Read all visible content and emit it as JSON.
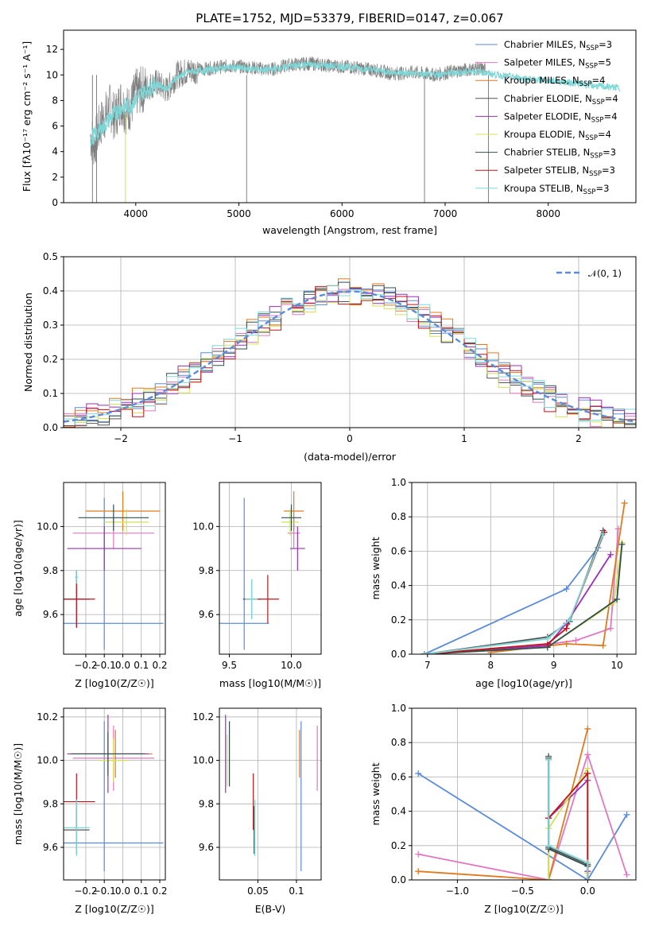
{
  "chart_data": [
    {
      "id": "spectrum",
      "type": "line",
      "title": "PLATE=1752, MJD=53379, FIBERID=0147, z=0.067",
      "xlabel": "wavelength [Angstrom, rest frame]",
      "ylabel": "Flux [fλ10⁻¹⁷ erg cm⁻² s⁻¹ A⁻¹]",
      "xlim": [
        3300,
        8850
      ],
      "ylim": [
        0,
        13.5
      ],
      "xticks": [
        4000,
        5000,
        6000,
        7000,
        8000
      ],
      "yticks": [
        0,
        2,
        4,
        6,
        8,
        10,
        12
      ],
      "legend_position": "right",
      "legend": [
        {
          "label": "Chabrier MILES, N_SSP=3",
          "color": "#5B8BD9"
        },
        {
          "label": "Salpeter MILES, N_SSP=5",
          "color": "#E377C2"
        },
        {
          "label": "Kroupa MILES, N_SSP=4",
          "color": "#E07A1F"
        },
        {
          "label": "Chabrier ELODIE, N_SSP=4",
          "color": "#555555"
        },
        {
          "label": "Salpeter ELODIE, N_SSP=4",
          "color": "#9B2FB8"
        },
        {
          "label": "Kroupa ELODIE, N_SSP=4",
          "color": "#D4E157"
        },
        {
          "label": "Chabrier STELIB, N_SSP=3",
          "color": "#2F4F4F"
        },
        {
          "label": "Salpeter STELIB, N_SSP=3",
          "color": "#C0141C"
        },
        {
          "label": "Kroupa STELIB, N_SSP=3",
          "color": "#7FD8D8"
        }
      ],
      "series": [
        {
          "name": "data",
          "color": "#808080",
          "x": [
            3560,
            3600,
            3650,
            3700,
            3750,
            3800,
            3850,
            3900,
            3950,
            4000,
            4100,
            4200,
            4300,
            4400,
            4500,
            4700,
            4900,
            5100,
            5300,
            5500,
            5700,
            5900,
            6100,
            6300,
            6500,
            6700,
            6900,
            7100,
            7300,
            7400
          ],
          "y": [
            5.2,
            4.5,
            6.0,
            6.8,
            7.5,
            6.6,
            8.0,
            7.2,
            7.5,
            8.6,
            9.0,
            9.4,
            8.8,
            10.0,
            10.3,
            10.5,
            10.7,
            10.6,
            10.4,
            10.8,
            10.9,
            10.7,
            10.6,
            10.4,
            10.1,
            10.2,
            10.0,
            10.3,
            10.5,
            10.4
          ]
        },
        {
          "name": "model",
          "color": "#7FD8D8",
          "x": [
            3560,
            3650,
            3750,
            3850,
            3950,
            4000,
            4100,
            4200,
            4300,
            4400,
            4500,
            4700,
            4900,
            5100,
            5300,
            5500,
            5700,
            5900,
            6100,
            6300,
            6500,
            6700,
            6900,
            7100,
            7300,
            7500,
            7700,
            7900,
            8100,
            8300,
            8500,
            8700
          ],
          "y": [
            5.0,
            5.6,
            6.6,
            7.4,
            7.6,
            8.2,
            8.8,
            9.3,
            8.9,
            9.8,
            10.2,
            10.4,
            10.6,
            10.5,
            10.4,
            10.7,
            10.8,
            10.7,
            10.6,
            10.4,
            10.2,
            10.1,
            10.0,
            10.2,
            10.3,
            10.0,
            9.8,
            9.6,
            9.5,
            9.3,
            9.1,
            9.0
          ]
        }
      ]
    },
    {
      "id": "residuals",
      "type": "line",
      "xlabel": "(data-model)/error",
      "ylabel": "Normed distribution",
      "xlim": [
        -2.5,
        2.5
      ],
      "ylim": [
        0,
        0.5
      ],
      "xticks": [
        -2,
        -1,
        0,
        1,
        2
      ],
      "yticks": [
        0.0,
        0.1,
        0.2,
        0.3,
        0.4,
        0.5
      ],
      "legend_position": "top-right",
      "legend": [
        {
          "label": "𝒩(0, 1)",
          "color": "#5B8BD9",
          "style": "dashed"
        }
      ],
      "series": [
        {
          "name": "N(0,1)",
          "type": "gaussian",
          "mu": 0,
          "sigma": 1,
          "color": "#5B8BD9"
        }
      ],
      "histograms": {
        "bin_edges_start": -2.5,
        "bin_width": 0.1,
        "colors": [
          "#5B8BD9",
          "#E377C2",
          "#E07A1F",
          "#555555",
          "#9B2FB8",
          "#D4E157",
          "#2F4F4F",
          "#C0141C",
          "#7FD8D8"
        ],
        "jitter": [
          0.01,
          -0.012,
          0.018,
          -0.008,
          0.014,
          -0.016,
          0.009,
          -0.011,
          0.006
        ]
      }
    },
    {
      "id": "age-vs-Z",
      "type": "scatter",
      "xlabel": "Z [log10(Z/Z☉)]",
      "ylabel": "age [log10(age/yr)]",
      "xlim": [
        -0.32,
        0.23
      ],
      "ylim": [
        9.42,
        10.2
      ],
      "xticks": [
        -0.2,
        -0.1,
        0.0,
        0.1,
        0.2
      ],
      "yticks": [
        9.6,
        9.8,
        10.0
      ],
      "points": [
        {
          "x": -0.1,
          "y": 9.56,
          "xerr": 0.32,
          "yerr": [
            0.12,
            0.57
          ],
          "color": "#5B8BD9"
        },
        {
          "x": -0.05,
          "y": 9.97,
          "xerr": 0.22,
          "yerr": 0.07,
          "color": "#E377C2"
        },
        {
          "x": 0.0,
          "y": 10.07,
          "xerr": 0.2,
          "yerr": 0.09,
          "color": "#E07A1F"
        },
        {
          "x": -0.25,
          "y": 9.67,
          "xerr": 0.07,
          "yerr": 0.13,
          "color": "#555555"
        },
        {
          "x": -0.1,
          "y": 9.9,
          "xerr": 0.2,
          "yerr": 0.1,
          "color": "#9B2FB8"
        },
        {
          "x": 0.02,
          "y": 10.02,
          "xerr": 0.12,
          "yerr": 0.06,
          "color": "#D4E157"
        },
        {
          "x": -0.05,
          "y": 10.04,
          "xerr": 0.19,
          "yerr": 0.06,
          "color": "#2F4F4F"
        },
        {
          "x": -0.25,
          "y": 9.67,
          "xerr": 0.1,
          "yerr": 0.13,
          "color": "#C0141C"
        },
        {
          "x": -0.25,
          "y": 9.77,
          "xerr": 0.01,
          "yerr": 0.03,
          "color": "#7FD8D8"
        }
      ]
    },
    {
      "id": "age-vs-mass",
      "type": "scatter",
      "xlabel": "mass [log10(M/M☉)]",
      "ylabel": "",
      "xlim": [
        9.42,
        10.24
      ],
      "ylim": [
        9.42,
        10.2
      ],
      "xticks": [
        9.5,
        10.0
      ],
      "yticks": [
        9.6,
        9.8,
        10.0
      ],
      "points": [
        {
          "x": 9.62,
          "y": 9.56,
          "xerr": 0.2,
          "yerr": [
            0.12,
            0.57
          ],
          "color": "#5B8BD9"
        },
        {
          "x": 10.02,
          "y": 9.97,
          "xerr": 0.05,
          "yerr": 0.07,
          "color": "#E377C2"
        },
        {
          "x": 10.02,
          "y": 10.07,
          "xerr": 0.08,
          "yerr": 0.09,
          "color": "#E07A1F"
        },
        {
          "x": 9.68,
          "y": 9.67,
          "xerr": 0.07,
          "yerr": 0.09,
          "color": "#555555"
        },
        {
          "x": 10.05,
          "y": 9.9,
          "xerr": 0.06,
          "yerr": 0.1,
          "color": "#9B2FB8"
        },
        {
          "x": 9.99,
          "y": 10.02,
          "xerr": 0.07,
          "yerr": 0.06,
          "color": "#D4E157"
        },
        {
          "x": 10.0,
          "y": 10.04,
          "xerr": 0.08,
          "yerr": 0.06,
          "color": "#2F4F4F"
        },
        {
          "x": 9.81,
          "y": 9.67,
          "xerr": 0.09,
          "yerr": 0.11,
          "color": "#C0141C"
        },
        {
          "x": 9.68,
          "y": 9.67,
          "xerr": 0.05,
          "yerr": 0.09,
          "color": "#7FD8D8"
        }
      ]
    },
    {
      "id": "weight-vs-age",
      "type": "line",
      "xlabel": "age [log10(age/yr)]",
      "ylabel": "mass weight",
      "xlim": [
        6.75,
        10.3
      ],
      "ylim": [
        0,
        1
      ],
      "xticks": [
        7,
        8,
        9,
        10
      ],
      "yticks": [
        0.0,
        0.2,
        0.4,
        0.6,
        0.8,
        1.0
      ],
      "series": [
        {
          "name": "",
          "color": "#5B8BD9",
          "x": [
            6.95,
            9.2,
            9.7
          ],
          "y": [
            0.0,
            0.38,
            0.62
          ]
        },
        {
          "name": "",
          "color": "#E377C2",
          "x": [
            8.0,
            9.35,
            9.9,
            10.02
          ],
          "y": [
            0.01,
            0.08,
            0.15,
            0.73
          ]
        },
        {
          "name": "",
          "color": "#E07A1F",
          "x": [
            8.0,
            9.2,
            9.78,
            10.12
          ],
          "y": [
            0.01,
            0.06,
            0.05,
            0.88
          ]
        },
        {
          "name": "",
          "color": "#555555",
          "x": [
            6.95,
            8.9,
            9.25,
            9.78
          ],
          "y": [
            0.0,
            0.1,
            0.19,
            0.72
          ]
        },
        {
          "name": "",
          "color": "#9B2FB8",
          "x": [
            6.95,
            8.9,
            9.2,
            9.9
          ],
          "y": [
            0.0,
            0.05,
            0.18,
            0.58
          ]
        },
        {
          "name": "",
          "color": "#D4E157",
          "x": [
            6.95,
            8.9,
            9.95,
            10.08
          ],
          "y": [
            0.0,
            0.04,
            0.3,
            0.65
          ]
        },
        {
          "name": "",
          "color": "#2F4F4F",
          "x": [
            6.95,
            8.9,
            10.0,
            10.08
          ],
          "y": [
            0.0,
            0.04,
            0.32,
            0.64
          ]
        },
        {
          "name": "",
          "color": "#C0141C",
          "x": [
            6.95,
            8.9,
            9.2,
            9.8
          ],
          "y": [
            0.0,
            0.06,
            0.15,
            0.71
          ]
        },
        {
          "name": "",
          "color": "#7FD8D8",
          "x": [
            6.95,
            8.9,
            9.25,
            9.78
          ],
          "y": [
            0.0,
            0.09,
            0.2,
            0.7
          ]
        }
      ]
    },
    {
      "id": "mass-vs-Z",
      "type": "scatter",
      "xlabel": "Z [log10(Z/Z☉)]",
      "ylabel": "mass [log10(M/M☉)]",
      "xlim": [
        -0.32,
        0.23
      ],
      "ylim": [
        9.45,
        10.24
      ],
      "xticks": [
        -0.2,
        -0.1,
        0.0,
        0.1,
        0.2
      ],
      "yticks": [
        9.6,
        9.8,
        10.0,
        10.2
      ],
      "points": [
        {
          "x": -0.1,
          "y": 9.62,
          "xerr": 0.32,
          "yerr": [
            0.13,
            0.56
          ],
          "color": "#5B8BD9"
        },
        {
          "x": -0.05,
          "y": 10.01,
          "xerr": 0.22,
          "yerr": 0.15,
          "color": "#E377C2"
        },
        {
          "x": -0.04,
          "y": 10.03,
          "xerr": 0.2,
          "yerr": 0.11,
          "color": "#E07A1F"
        },
        {
          "x": -0.25,
          "y": 9.68,
          "xerr": 0.07,
          "yerr": 0.11,
          "color": "#555555"
        },
        {
          "x": -0.08,
          "y": 10.03,
          "xerr": 0.22,
          "yerr": 0.18,
          "color": "#9B2FB8"
        },
        {
          "x": -0.05,
          "y": 10.0,
          "xerr": 0.08,
          "yerr": 0.1,
          "color": "#D4E157"
        },
        {
          "x": -0.08,
          "y": 10.03,
          "xerr": 0.2,
          "yerr": 0.1,
          "color": "#2F4F4F"
        },
        {
          "x": -0.25,
          "y": 9.81,
          "xerr": 0.1,
          "yerr": 0.13,
          "color": "#C0141C"
        },
        {
          "x": -0.25,
          "y": 9.69,
          "xerr": 0.07,
          "yerr": 0.13,
          "color": "#7FD8D8"
        }
      ]
    },
    {
      "id": "mass-vs-ebv",
      "type": "scatter",
      "xlabel": "E(B-V)",
      "ylabel": "",
      "xlim": [
        0.0,
        0.132
      ],
      "ylim": [
        9.45,
        10.24
      ],
      "xticks": [
        0.05,
        0.1
      ],
      "yticks": [
        9.6,
        9.8,
        10.0,
        10.2
      ],
      "points": [
        {
          "x": 0.106,
          "y": 9.62,
          "yerr": [
            0.13,
            0.56
          ],
          "color": "#5B8BD9"
        },
        {
          "x": 0.127,
          "y": 10.01,
          "yerr": 0.15,
          "color": "#E377C2"
        },
        {
          "x": 0.104,
          "y": 10.03,
          "yerr": 0.11,
          "color": "#E07A1F"
        },
        {
          "x": 0.045,
          "y": 9.68,
          "yerr": 0.11,
          "color": "#555555"
        },
        {
          "x": 0.008,
          "y": 10.03,
          "yerr": 0.18,
          "color": "#9B2FB8"
        },
        {
          "x": 0.01,
          "y": 10.0,
          "yerr": 0.12,
          "color": "#D4E157"
        },
        {
          "x": 0.013,
          "y": 10.03,
          "yerr": 0.15,
          "color": "#2F4F4F"
        },
        {
          "x": 0.044,
          "y": 9.81,
          "yerr": 0.13,
          "color": "#C0141C"
        },
        {
          "x": 0.046,
          "y": 9.69,
          "yerr": 0.13,
          "color": "#7FD8D8"
        }
      ]
    },
    {
      "id": "weight-vs-Z",
      "type": "line",
      "xlabel": "Z [log10(Z/Z☉)]",
      "ylabel": "mass weight",
      "xlim": [
        -1.35,
        0.37
      ],
      "ylim": [
        0,
        1
      ],
      "xticks": [
        -1.0,
        -0.5,
        0.0
      ],
      "yticks": [
        0.0,
        0.2,
        0.4,
        0.6,
        0.8,
        1.0
      ],
      "series": [
        {
          "name": "",
          "color": "#5B8BD9",
          "x": [
            -1.3,
            0.0,
            0.3
          ],
          "y": [
            0.62,
            0.0,
            0.38
          ]
        },
        {
          "name": "",
          "color": "#E377C2",
          "x": [
            -1.3,
            -0.3,
            0.0,
            0.3
          ],
          "y": [
            0.15,
            0.0,
            0.73,
            0.03
          ]
        },
        {
          "name": "",
          "color": "#E07A1F",
          "x": [
            -1.3,
            -0.3,
            0.0
          ],
          "y": [
            0.05,
            0.0,
            0.88
          ]
        },
        {
          "name": "",
          "color": "#555555",
          "x": [
            -0.3,
            -0.3,
            0.0,
            0.0
          ],
          "y": [
            0.72,
            0.19,
            0.09,
            0.0
          ]
        },
        {
          "name": "",
          "color": "#9B2FB8",
          "x": [
            -0.3,
            -0.3,
            0.0,
            0.0
          ],
          "y": [
            0.0,
            0.36,
            0.58,
            0.05
          ]
        },
        {
          "name": "",
          "color": "#D4E157",
          "x": [
            -0.3,
            -0.3,
            0.0,
            0.0
          ],
          "y": [
            0.0,
            0.3,
            0.65,
            0.04
          ]
        },
        {
          "name": "",
          "color": "#2F4F4F",
          "x": [
            -0.3,
            -0.3,
            0.0,
            0.0
          ],
          "y": [
            0.71,
            0.18,
            0.08,
            0.0
          ]
        },
        {
          "name": "",
          "color": "#C0141C",
          "x": [
            -0.3,
            -0.3,
            0.0,
            0.0
          ],
          "y": [
            0.7,
            0.36,
            0.62,
            0.0
          ]
        },
        {
          "name": "",
          "color": "#7FD8D8",
          "x": [
            -0.3,
            -0.3,
            0.0,
            0.0
          ],
          "y": [
            0.7,
            0.2,
            0.1,
            0.0
          ]
        }
      ]
    }
  ]
}
